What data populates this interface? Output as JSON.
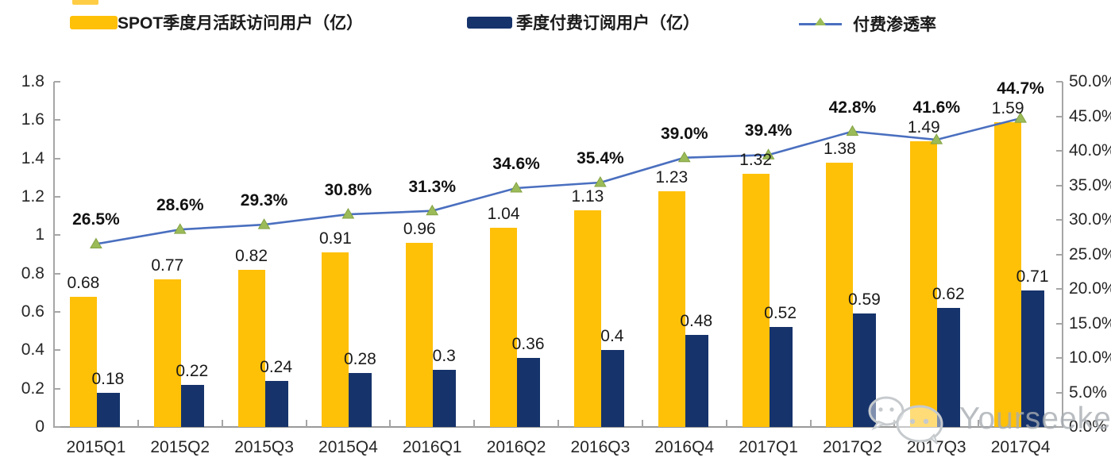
{
  "legend": {
    "items": [
      {
        "label": "SPOT季度月活跃访问用户（亿）",
        "swatch": "bar",
        "color": "#FFC008"
      },
      {
        "label": "季度付费订阅用户（亿）",
        "swatch": "bar",
        "color": "#16336B"
      },
      {
        "label": "付费渗透率",
        "swatch": "line-triangle",
        "line_color": "#4A6FBF",
        "marker_color": "#9BBB59"
      }
    ]
  },
  "chart_data": {
    "type": "combo",
    "categories": [
      "2015Q1",
      "2015Q2",
      "2015Q3",
      "2015Q4",
      "2016Q1",
      "2016Q2",
      "2016Q3",
      "2016Q4",
      "2017Q1",
      "2017Q2",
      "2017Q3",
      "2017Q4"
    ],
    "series": [
      {
        "name": "SPOT季度月活跃访问用户（亿）",
        "type": "bar",
        "axis": "left",
        "color": "#FFC008",
        "values": [
          0.68,
          0.77,
          0.82,
          0.91,
          0.96,
          1.04,
          1.13,
          1.23,
          1.32,
          1.38,
          1.49,
          1.59
        ],
        "labels": [
          "0.68",
          "0.77",
          "0.82",
          "0.91",
          "0.96",
          "1.04",
          "1.13",
          "1.23",
          "1.32",
          "1.38",
          "1.49",
          "1.59"
        ]
      },
      {
        "name": "季度付费订阅用户（亿）",
        "type": "bar",
        "axis": "left",
        "color": "#16336B",
        "values": [
          0.18,
          0.22,
          0.24,
          0.28,
          0.3,
          0.36,
          0.4,
          0.48,
          0.52,
          0.59,
          0.62,
          0.71
        ],
        "labels": [
          "0.18",
          "0.22",
          "0.24",
          "0.28",
          "0.3",
          "0.36",
          "0.4",
          "0.48",
          "0.52",
          "0.59",
          "0.62",
          "0.71"
        ]
      },
      {
        "name": "付费渗透率",
        "type": "line",
        "axis": "right",
        "color": "#4A6FBF",
        "marker": "triangle",
        "marker_color": "#9BBB59",
        "values": [
          26.5,
          28.6,
          29.3,
          30.8,
          31.3,
          34.6,
          35.4,
          39.0,
          39.4,
          42.8,
          41.6,
          44.7
        ],
        "labels": [
          "26.5%",
          "28.6%",
          "29.3%",
          "30.8%",
          "31.3%",
          "34.6%",
          "35.4%",
          "39.0%",
          "39.4%",
          "42.8%",
          "41.6%",
          "44.7%"
        ]
      }
    ],
    "left_axis": {
      "min": 0,
      "max": 1.8,
      "ticks": [
        "1.8",
        "1.6",
        "1.4",
        "1.2",
        "1",
        "0.8",
        "0.6",
        "0.4",
        "0.2",
        "0"
      ]
    },
    "right_axis": {
      "min": 0,
      "max": 50,
      "ticks": [
        "50.0%",
        "45.0%",
        "40.0%",
        "35.0%",
        "30.0%",
        "25.0%",
        "20.0%",
        "15.0%",
        "10.0%",
        "5.0%",
        "0.0%"
      ]
    },
    "grid": false,
    "legend_position": "top"
  },
  "watermark": {
    "text": "Yourseeker",
    "icon": "wechat-icon"
  }
}
